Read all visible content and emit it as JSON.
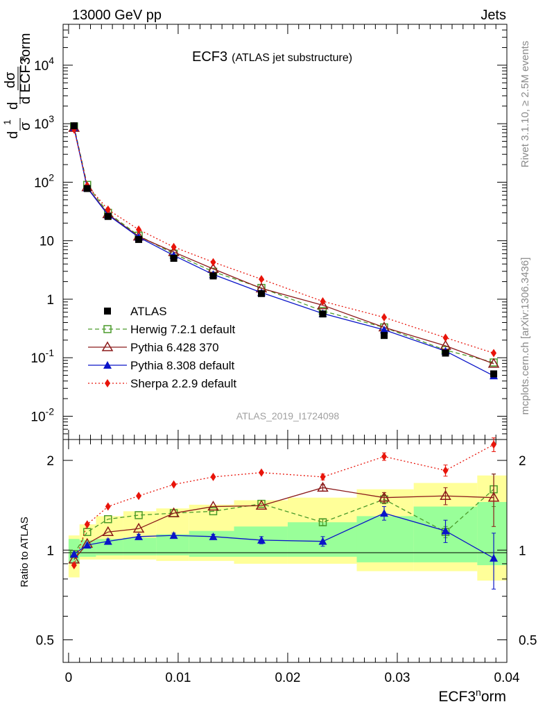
{
  "header": {
    "left": "13000 GeV pp",
    "right": "Jets"
  },
  "side_labels": {
    "rivet": "Rivet 3.1.10, ≥ 2.5M events",
    "mcplots": "mcplots.cern.ch [arXiv:1306.3436]"
  },
  "chart_data": {
    "type": "line",
    "title": "ECF3",
    "subtitle": "(ATLAS jet substructure)",
    "analysis_id": "ATLAS_2019_I1724098",
    "xlabel": "ECF3^norm",
    "ylabel_main": "1/σ dσ/d ECF3^norm",
    "ylabel_ratio": "Ratio to ATLAS",
    "xlim": [
      -0.0005,
      0.04
    ],
    "ylim_main": [
      0.004,
      50000
    ],
    "yscale_main": "log",
    "ylim_ratio": [
      0.42,
      2.35
    ],
    "yscale_ratio": "log",
    "grid": false,
    "legend_placement": "bottom-left",
    "x_ticks": [
      "0",
      "0.01",
      "0.02",
      "0.03",
      "0.04"
    ],
    "y_ticks_main": [
      "10^-2",
      "10^-1",
      "1",
      "10",
      "10^2",
      "10^3",
      "10^4"
    ],
    "y_ticks_ratio": [
      "0.5",
      "1",
      "2"
    ],
    "x": [
      0.0005,
      0.0017,
      0.0036,
      0.0064,
      0.0096,
      0.0132,
      0.0176,
      0.0232,
      0.0288,
      0.0344,
      0.0388
    ],
    "bin_edges": [
      0.0,
      0.001,
      0.0025,
      0.005,
      0.008,
      0.011,
      0.0151,
      0.02,
      0.0263,
      0.0315,
      0.0373,
      0.04
    ],
    "series": [
      {
        "name": "ATLAS",
        "role": "data",
        "color": "#000000",
        "marker": "square",
        "values": [
          920,
          78,
          26,
          10.5,
          5.0,
          2.5,
          1.25,
          0.56,
          0.24,
          0.12,
          0.053
        ]
      },
      {
        "name": "Herwig 7.2.1 default",
        "color": "#4a9a2a",
        "marker": "open-square",
        "dash": "6,4",
        "values": [
          900,
          90,
          30,
          12.2,
          6.0,
          2.95,
          1.56,
          0.63,
          0.33,
          0.135,
          0.083
        ]
      },
      {
        "name": "Pythia 6.428 370",
        "color": "#8b1a1a",
        "marker": "open-triangle",
        "dash": "",
        "values": [
          850,
          82,
          28.5,
          11.8,
          6.4,
          3.3,
          1.53,
          0.79,
          0.33,
          0.16,
          0.079
        ]
      },
      {
        "name": "Pythia 8.308 default",
        "color": "#0a14c8",
        "marker": "filled-triangle",
        "dash": "",
        "values": [
          860,
          80,
          27.5,
          11.5,
          5.6,
          2.65,
          1.3,
          0.57,
          0.3,
          0.13,
          0.049
        ]
      },
      {
        "name": "Sherpa 2.2.9 default",
        "color": "#e8140a",
        "marker": "diamond",
        "dash": "2,3",
        "values": [
          800,
          88,
          34,
          15.5,
          7.8,
          4.3,
          2.2,
          0.92,
          0.49,
          0.22,
          0.12
        ]
      }
    ],
    "ratio": {
      "band_yellow": [
        [
          0.81,
          1.12
        ],
        [
          0.93,
          1.22
        ],
        [
          0.93,
          1.3
        ],
        [
          0.93,
          1.35
        ],
        [
          0.92,
          1.38
        ],
        [
          0.92,
          1.42
        ],
        [
          0.9,
          1.47
        ],
        [
          0.9,
          1.5
        ],
        [
          0.85,
          1.6
        ],
        [
          0.85,
          1.68
        ],
        [
          0.79,
          1.78
        ]
      ],
      "band_green": [
        [
          0.9,
          1.09
        ],
        [
          0.95,
          1.08
        ],
        [
          0.96,
          1.09
        ],
        [
          0.96,
          1.1
        ],
        [
          0.96,
          1.13
        ],
        [
          0.95,
          1.16
        ],
        [
          0.95,
          1.2
        ],
        [
          0.95,
          1.24
        ],
        [
          0.91,
          1.3
        ],
        [
          0.91,
          1.4
        ],
        [
          0.89,
          1.45
        ]
      ],
      "series": [
        {
          "name": "Herwig 7.2.1 default",
          "values": [
            0.97,
            1.15,
            1.27,
            1.31,
            1.33,
            1.35,
            1.43,
            1.24,
            1.48,
            1.15,
            1.6
          ],
          "err": [
            0,
            0,
            0,
            0,
            0,
            0,
            0,
            0.03,
            0.05,
            0.05,
            0.2
          ]
        },
        {
          "name": "Pythia 6.428 370",
          "values": [
            0.93,
            1.05,
            1.15,
            1.18,
            1.33,
            1.4,
            1.41,
            1.62,
            1.5,
            1.52,
            1.5
          ],
          "err": [
            0,
            0,
            0,
            0,
            0,
            0,
            0,
            0.04,
            0.06,
            0.1,
            0.3
          ]
        },
        {
          "name": "Pythia 8.308 default",
          "values": [
            0.97,
            1.04,
            1.07,
            1.11,
            1.12,
            1.11,
            1.08,
            1.07,
            1.33,
            1.16,
            0.94
          ],
          "err": [
            0,
            0,
            0.02,
            0.02,
            0.02,
            0.02,
            0.03,
            0.04,
            0.07,
            0.1,
            0.2
          ]
        },
        {
          "name": "Sherpa 2.2.9 default",
          "values": [
            0.89,
            1.22,
            1.4,
            1.52,
            1.66,
            1.76,
            1.82,
            1.76,
            2.06,
            1.85,
            2.26
          ],
          "err": [
            0,
            0,
            0,
            0,
            0,
            0,
            0,
            0.04,
            0.06,
            0.08,
            0.12
          ]
        }
      ]
    }
  }
}
